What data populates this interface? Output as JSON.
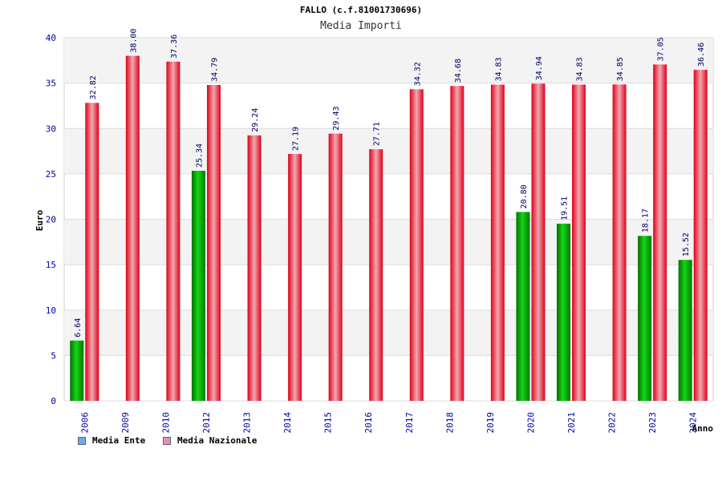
{
  "header": {
    "title": "FALLO (c.f.81001730696)",
    "subtitle": "Media Importi"
  },
  "legend": [
    {
      "label": "Media Ente",
      "swatch_color": "#6fa8e8"
    },
    {
      "label": "Media Nazionale",
      "swatch_color": "#e58fb8"
    }
  ],
  "colors": {
    "ente_bar": "#0fb60f",
    "nazionale_bar": "#e81023",
    "axis_text": "#0000aa",
    "label_text": "#000066",
    "band": "#f3f3f3"
  },
  "chart_data": {
    "type": "bar",
    "title": "",
    "xlabel": "Anno",
    "ylabel": "Euro",
    "ylim": [
      0,
      40
    ],
    "yticks": [
      0,
      5,
      10,
      15,
      20,
      25,
      30,
      35,
      40
    ],
    "categories": [
      "2006",
      "2009",
      "2010",
      "2012",
      "2013",
      "2014",
      "2015",
      "2016",
      "2017",
      "2018",
      "2019",
      "2020",
      "2021",
      "2022",
      "2023",
      "2024"
    ],
    "series": [
      {
        "name": "Media Ente",
        "values": [
          6.64,
          null,
          null,
          25.34,
          null,
          null,
          null,
          null,
          null,
          null,
          null,
          20.8,
          19.51,
          null,
          18.17,
          15.52
        ]
      },
      {
        "name": "Media Nazionale",
        "values": [
          32.82,
          38.0,
          37.36,
          34.79,
          29.24,
          27.19,
          29.43,
          27.71,
          34.32,
          34.68,
          34.83,
          34.94,
          34.83,
          34.85,
          37.05,
          36.46
        ]
      }
    ],
    "data_labels": [
      [
        "6.64",
        null,
        null,
        "25.34",
        null,
        null,
        null,
        null,
        null,
        null,
        null,
        "20.80",
        "19.51",
        null,
        "18.17",
        "15.52"
      ],
      [
        "32.82",
        "38.00",
        "37.36",
        "34.79",
        "29.24",
        "27.19",
        "29.43",
        "27.71",
        "34.32",
        "34.68",
        "34.83",
        "34.94",
        "34.83",
        "34.85",
        "37.05",
        "36.46"
      ]
    ],
    "grid": "alternating-bands",
    "legend_position": "bottom-left"
  }
}
